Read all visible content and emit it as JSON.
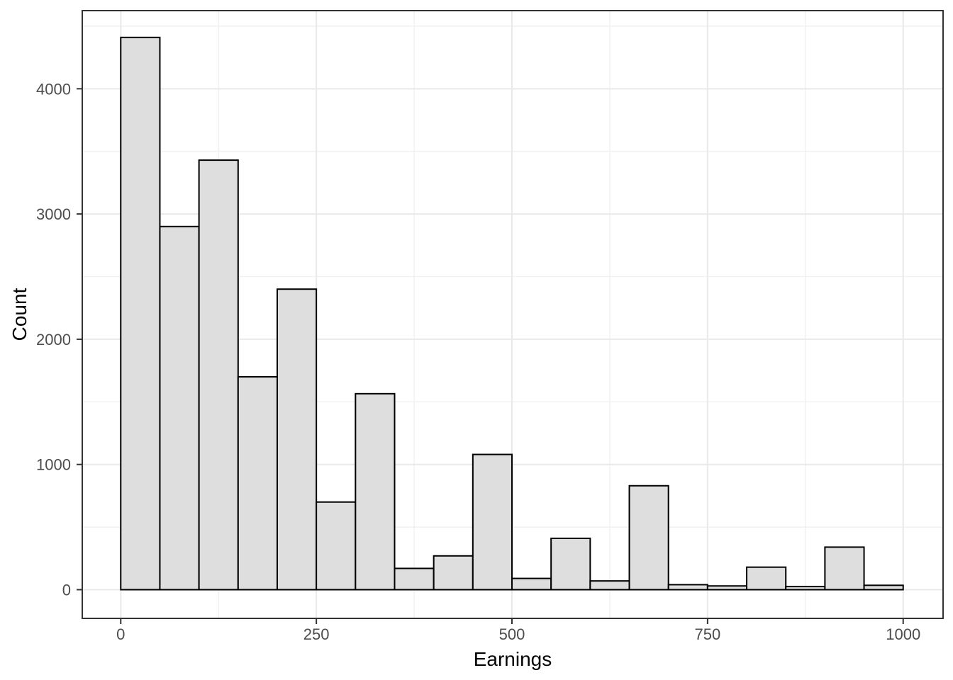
{
  "chart_data": {
    "type": "bar",
    "subtype": "histogram",
    "title": "",
    "xlabel": "Earnings",
    "ylabel": "Count",
    "legend": "none",
    "grid": "on",
    "bin_width": 50,
    "bin_edges": [
      0,
      50,
      100,
      150,
      200,
      250,
      300,
      350,
      400,
      450,
      500,
      550,
      600,
      650,
      700,
      750,
      800,
      850,
      900,
      950,
      1000
    ],
    "counts": [
      4410,
      2900,
      3430,
      1700,
      2400,
      700,
      1565,
      170,
      270,
      1080,
      90,
      410,
      70,
      830,
      40,
      30,
      180,
      25,
      340,
      35
    ],
    "x_ticks": [
      {
        "value": 0,
        "label": "0"
      },
      {
        "value": 250,
        "label": "250"
      },
      {
        "value": 500,
        "label": "500"
      },
      {
        "value": 750,
        "label": "750"
      },
      {
        "value": 1000,
        "label": "1000"
      }
    ],
    "y_ticks": [
      {
        "value": 0,
        "label": "0"
      },
      {
        "value": 1000,
        "label": "1000"
      },
      {
        "value": 2000,
        "label": "2000"
      },
      {
        "value": 3000,
        "label": "3000"
      },
      {
        "value": 4000,
        "label": "4000"
      }
    ],
    "x_minor_ticks": [
      125,
      375,
      625,
      875
    ],
    "y_minor_ticks": [
      500,
      1500,
      2500,
      3500,
      4500
    ],
    "x_display_range": [
      -49.2,
      1051.0
    ],
    "y_display_range": [
      -229,
      4624
    ],
    "colors": {
      "background": "#ffffff",
      "panel_background": "#ffffff",
      "bar_fill": "#dedede",
      "bar_stroke": "#000000",
      "grid_major": "#e9e9e9",
      "grid_minor": "#f1f1f1",
      "panel_border": "#333333",
      "axis_tick": "#333333",
      "tick_label": "#4d4d4d",
      "axis_title": "#000000"
    }
  }
}
